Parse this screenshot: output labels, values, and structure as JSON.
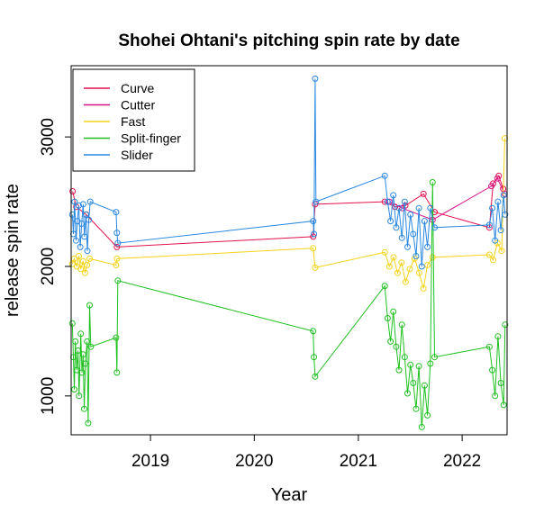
{
  "chart_data": {
    "type": "scatter",
    "title": "Shohei Ohtani's pitching spin rate by date",
    "xlabel": "Year",
    "ylabel": "release spin rate",
    "x_ticks": [
      "2019",
      "2020",
      "2021",
      "2022"
    ],
    "y_ticks": [
      1000,
      2000,
      3000
    ],
    "ylim": [
      700,
      3550
    ],
    "xlim": [
      "2018-03-28",
      "2022-06-08"
    ],
    "grid": false,
    "legend_position": "top-left",
    "series": [
      {
        "name": "Curve",
        "color": "#e3124d",
        "points": [
          [
            "2018-04-02",
            2580
          ],
          [
            "2018-04-15",
            2460
          ],
          [
            "2018-05-20",
            2400
          ],
          [
            "2018-09-05",
            2150
          ],
          [
            "2020-07-26",
            2230
          ],
          [
            "2020-08-02",
            2480
          ],
          [
            "2021-04-04",
            2500
          ],
          [
            "2021-05-10",
            2460
          ],
          [
            "2021-06-15",
            2470
          ],
          [
            "2021-08-18",
            2560
          ],
          [
            "2021-09-26",
            2420
          ],
          [
            "2022-04-07",
            2300
          ],
          [
            "2022-04-20",
            2640
          ],
          [
            "2022-05-10",
            2700
          ],
          [
            "2022-05-25",
            2600
          ]
        ]
      },
      {
        "name": "Cutter",
        "color": "#d6128a",
        "points": [
          [
            "2021-04-20",
            2500
          ],
          [
            "2021-06-05",
            2450
          ],
          [
            "2021-09-19",
            2360
          ],
          [
            "2022-04-14",
            2620
          ],
          [
            "2022-05-05",
            2680
          ],
          [
            "2022-05-30",
            2560
          ]
        ]
      },
      {
        "name": "Fast",
        "color": "#f5d31a",
        "points": [
          [
            "2018-04-01",
            2020
          ],
          [
            "2018-04-08",
            2060
          ],
          [
            "2018-04-17",
            2000
          ],
          [
            "2018-04-24",
            2080
          ],
          [
            "2018-05-01",
            1980
          ],
          [
            "2018-05-09",
            2040
          ],
          [
            "2018-05-16",
            1950
          ],
          [
            "2018-05-23",
            2010
          ],
          [
            "2018-06-01",
            2060
          ],
          [
            "2018-09-02",
            2010
          ],
          [
            "2018-09-05",
            2060
          ],
          [
            "2020-07-26",
            2140
          ],
          [
            "2020-08-02",
            1990
          ],
          [
            "2021-04-04",
            2110
          ],
          [
            "2021-04-20",
            2000
          ],
          [
            "2021-05-05",
            2070
          ],
          [
            "2021-05-19",
            1950
          ],
          [
            "2021-06-02",
            2030
          ],
          [
            "2021-06-16",
            1880
          ],
          [
            "2021-07-01",
            1980
          ],
          [
            "2021-07-18",
            2060
          ],
          [
            "2021-08-03",
            1950
          ],
          [
            "2021-08-18",
            1830
          ],
          [
            "2021-09-01",
            2010
          ],
          [
            "2021-09-19",
            2070
          ],
          [
            "2022-04-07",
            2090
          ],
          [
            "2022-04-20",
            2050
          ],
          [
            "2022-05-05",
            2180
          ],
          [
            "2022-05-20",
            2120
          ],
          [
            "2022-05-31",
            2990
          ]
        ]
      },
      {
        "name": "Split-finger",
        "color": "#20c020",
        "points": [
          [
            "2018-04-01",
            1560
          ],
          [
            "2018-04-05",
            1300
          ],
          [
            "2018-04-08",
            1050
          ],
          [
            "2018-04-12",
            1420
          ],
          [
            "2018-04-17",
            1200
          ],
          [
            "2018-04-21",
            1350
          ],
          [
            "2018-04-25",
            1000
          ],
          [
            "2018-05-01",
            1480
          ],
          [
            "2018-05-05",
            1180
          ],
          [
            "2018-05-09",
            1320
          ],
          [
            "2018-05-13",
            900
          ],
          [
            "2018-05-17",
            1250
          ],
          [
            "2018-05-23",
            1420
          ],
          [
            "2018-05-27",
            790
          ],
          [
            "2018-06-01",
            1700
          ],
          [
            "2018-06-05",
            1380
          ],
          [
            "2018-09-02",
            1450
          ],
          [
            "2018-09-05",
            1180
          ],
          [
            "2018-09-08",
            1890
          ],
          [
            "2020-07-26",
            1500
          ],
          [
            "2020-07-29",
            1300
          ],
          [
            "2020-08-02",
            1150
          ],
          [
            "2021-04-04",
            1850
          ],
          [
            "2021-04-14",
            1600
          ],
          [
            "2021-04-24",
            1420
          ],
          [
            "2021-05-04",
            1650
          ],
          [
            "2021-05-14",
            1380
          ],
          [
            "2021-05-24",
            1200
          ],
          [
            "2021-06-03",
            1550
          ],
          [
            "2021-06-13",
            1300
          ],
          [
            "2021-06-23",
            1020
          ],
          [
            "2021-07-03",
            1240
          ],
          [
            "2021-07-13",
            1100
          ],
          [
            "2021-07-23",
            900
          ],
          [
            "2021-08-02",
            1230
          ],
          [
            "2021-08-12",
            760
          ],
          [
            "2021-08-22",
            1080
          ],
          [
            "2021-09-01",
            850
          ],
          [
            "2021-09-11",
            1250
          ],
          [
            "2021-09-19",
            2650
          ],
          [
            "2021-09-26",
            1300
          ],
          [
            "2022-04-07",
            1380
          ],
          [
            "2022-04-17",
            1200
          ],
          [
            "2022-04-27",
            1000
          ],
          [
            "2022-05-07",
            1460
          ],
          [
            "2022-05-17",
            1100
          ],
          [
            "2022-05-27",
            930
          ],
          [
            "2022-06-01",
            1550
          ]
        ]
      },
      {
        "name": "Slider",
        "color": "#2a88e0",
        "points": [
          [
            "2018-04-01",
            2400
          ],
          [
            "2018-04-05",
            2250
          ],
          [
            "2018-04-09",
            2500
          ],
          [
            "2018-04-14",
            2200
          ],
          [
            "2018-04-19",
            2350
          ],
          [
            "2018-04-24",
            2470
          ],
          [
            "2018-04-29",
            2150
          ],
          [
            "2018-05-04",
            2330
          ],
          [
            "2018-05-09",
            2480
          ],
          [
            "2018-05-14",
            2230
          ],
          [
            "2018-05-19",
            2400
          ],
          [
            "2018-05-24",
            2120
          ],
          [
            "2018-05-29",
            2360
          ],
          [
            "2018-06-03",
            2500
          ],
          [
            "2018-09-02",
            2420
          ],
          [
            "2018-09-05",
            2260
          ],
          [
            "2018-09-08",
            2180
          ],
          [
            "2020-07-26",
            2350
          ],
          [
            "2020-07-29",
            2250
          ],
          [
            "2020-08-02",
            3450
          ],
          [
            "2020-08-05",
            2500
          ],
          [
            "2021-04-04",
            2700
          ],
          [
            "2021-04-14",
            2500
          ],
          [
            "2021-04-24",
            2350
          ],
          [
            "2021-05-04",
            2550
          ],
          [
            "2021-05-14",
            2300
          ],
          [
            "2021-05-24",
            2450
          ],
          [
            "2021-06-03",
            2220
          ],
          [
            "2021-06-13",
            2500
          ],
          [
            "2021-06-23",
            2150
          ],
          [
            "2021-07-03",
            2400
          ],
          [
            "2021-07-13",
            2250
          ],
          [
            "2021-07-23",
            2080
          ],
          [
            "2021-08-02",
            2450
          ],
          [
            "2021-08-12",
            2000
          ],
          [
            "2021-08-22",
            2350
          ],
          [
            "2021-09-01",
            2150
          ],
          [
            "2021-09-11",
            2450
          ],
          [
            "2021-09-26",
            2300
          ],
          [
            "2022-04-07",
            2320
          ],
          [
            "2022-04-17",
            2450
          ],
          [
            "2022-04-27",
            2200
          ],
          [
            "2022-05-07",
            2500
          ],
          [
            "2022-05-17",
            2280
          ],
          [
            "2022-05-27",
            2550
          ],
          [
            "2022-06-01",
            2400
          ]
        ]
      }
    ]
  }
}
